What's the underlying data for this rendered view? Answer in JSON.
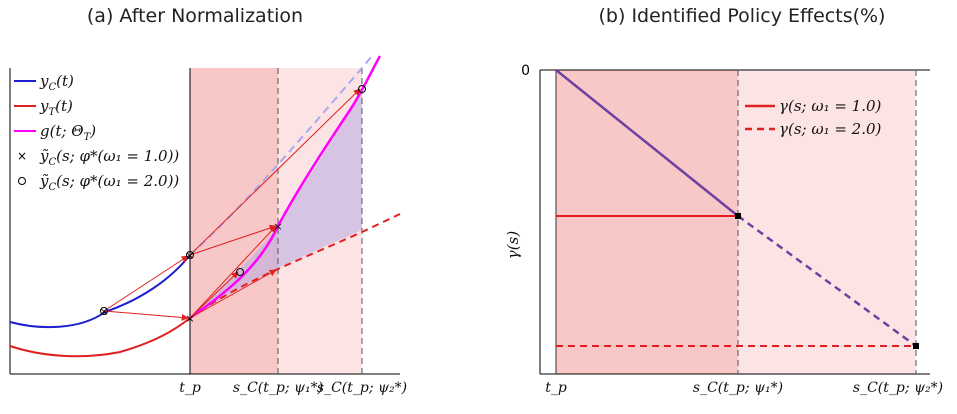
{
  "chart_data": [
    {
      "type": "line",
      "title": "(a) After Normalization",
      "xlabel": "",
      "ylabel": "",
      "xticks": [
        "t_p",
        "s_C(t_p; ψ₁*)",
        "s_C(t_p; ψ₂*)"
      ],
      "legend_position": "top-left",
      "legend": [
        "y_C(t)",
        "y_T(t)",
        "g(t; Θ_T)",
        "ỹ_C(s; φ*(ω₁ = 1.0))",
        "ỹ_C(s; φ*(ω₁ = 2.0))"
      ],
      "x": [
        0,
        1,
        2,
        3,
        4,
        5,
        6,
        7,
        8,
        9,
        10
      ],
      "series": [
        {
          "name": "y_C(t)",
          "color": "#1f1fd0",
          "x": [
            0,
            1,
            2,
            3,
            4,
            5
          ],
          "values": [
            0.28,
            0.26,
            0.27,
            0.34,
            0.5,
            0.77
          ]
        },
        {
          "name": "y_T(t)",
          "color": "#e02020",
          "x": [
            0,
            1,
            2,
            3,
            4,
            5,
            6,
            7,
            8,
            9,
            10
          ],
          "values": [
            0.12,
            0.1,
            0.11,
            0.18,
            0.33,
            0.55,
            0.72,
            0.86,
            0.98,
            1.09,
            1.18
          ]
        },
        {
          "name": "g(t; Θ_T)",
          "color": "#ff00ff",
          "x": [
            5,
            6,
            7,
            8,
            9,
            10
          ],
          "values": [
            0.55,
            0.74,
            1.0,
            1.35,
            1.8,
            2.4
          ]
        }
      ],
      "shaded_regions": [
        {
          "from": 5,
          "to": 7.4,
          "color": "#f8c8c8"
        },
        {
          "from": 7.4,
          "to": 9.7,
          "color": "#fde4e4"
        }
      ]
    },
    {
      "type": "line",
      "title": "(b) Identified Policy Effects(%)",
      "xlabel": "",
      "ylabel": "γ(s)",
      "xticks": [
        "t_p",
        "s_C(t_p; ψ₁*)",
        "s_C(t_p; ψ₂*)"
      ],
      "yticks": [
        "0"
      ],
      "legend_position": "top-right",
      "series": [
        {
          "name": "γ(s; ω₁ = 1.0)",
          "color": "#e02020",
          "style": "solid",
          "x": [
            0,
            1
          ],
          "values": [
            -0.5,
            -0.5
          ]
        },
        {
          "name": "γ(s; ω₁ = 2.0)",
          "color": "#e02020",
          "style": "dashed",
          "x": [
            0,
            2
          ],
          "values": [
            -1.0,
            -1.0
          ]
        },
        {
          "name": "",
          "color": "#7040a0",
          "style": "solid",
          "x": [
            0,
            1
          ],
          "values": [
            0,
            -0.5
          ]
        },
        {
          "name": "",
          "color": "#7040a0",
          "style": "dashed",
          "x": [
            1,
            2
          ],
          "values": [
            -0.5,
            -1.0
          ]
        }
      ]
    }
  ],
  "panel_a": {
    "title": "(a) After Normalization",
    "legend": [
      {
        "label": "y",
        "sub": "C",
        "rest": "(t)",
        "color": "#1f1fd0",
        "marker": "line"
      },
      {
        "label": "y",
        "sub": "T",
        "rest": "(t)",
        "color": "#e02020",
        "marker": "line"
      },
      {
        "label": "g(t; Θ",
        "sub": "T",
        "rest": ")",
        "color": "#ff00ff",
        "marker": "line"
      },
      {
        "label": "ỹ",
        "sub": "C",
        "rest": "(s; φ*(ω₁ = 1.0))",
        "color": "#000000",
        "marker": "×"
      },
      {
        "label": "ỹ",
        "sub": "C",
        "rest": "(s; φ*(ω₁ = 2.0))",
        "color": "#000000",
        "marker": "○"
      }
    ],
    "xticks": [
      "t_p",
      "s_C(t_p; ψ₁*)",
      "s_C(t_p; ψ₂*)"
    ]
  },
  "panel_b": {
    "title": "(b) Identified Policy Effects(%)",
    "ylabel": "γ(s)",
    "ytick": "0",
    "legend": [
      {
        "label": "γ(s; ω₁ = 1.0)",
        "style": "solid"
      },
      {
        "label": "γ(s; ω₁ = 2.0)",
        "style": "dashed"
      }
    ],
    "xticks": [
      "t_p",
      "s_C(t_p; ψ₁*)",
      "s_C(t_p; ψ₂*)"
    ]
  }
}
